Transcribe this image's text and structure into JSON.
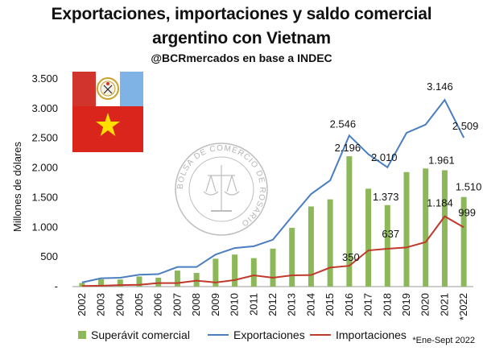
{
  "header": {
    "title_line1": "Exportaciones, importaciones y saldo comercial",
    "title_line2": "argentino con Vietnam",
    "subtitle": "@BCRmercados en base a INDEC"
  },
  "note": "*Ene-Sept 2022",
  "colors": {
    "bars": "#8db85a",
    "exports": "#4a7ec1",
    "imports": "#c0392b",
    "vietnam_red": "#da251d",
    "vietnam_star": "#ffde00",
    "santa_fe_red": "#d0342c",
    "santa_fe_blue": "#7fb2e5"
  },
  "icons": [
    "vietnam-flag-icon",
    "santa-fe-flag-icon",
    "bolsa-de-comercio-de-rosario-seal-icon"
  ],
  "watermark_text": "BOLSA DE COMERCIO DE ROSARIO",
  "chart_data": {
    "type": "bar",
    "ylabel": "Millones de dólares",
    "ylim": [
      0,
      3500
    ],
    "yticks": [
      "-",
      "500",
      "1.000",
      "1.500",
      "2.000",
      "2.500",
      "3.000",
      "3.500"
    ],
    "categories": [
      "2002",
      "2003",
      "2004",
      "2005",
      "2006",
      "2007",
      "2008",
      "2009",
      "2010",
      "2011",
      "2012",
      "2013",
      "2014",
      "2015",
      "2016",
      "2017",
      "2018",
      "2019",
      "2020",
      "2021",
      "*2022"
    ],
    "series": [
      {
        "name": "Superávit comercial",
        "kind": "bar",
        "values": [
          60,
          125,
          120,
          170,
          150,
          270,
          230,
          470,
          540,
          480,
          640,
          990,
          1350,
          1470,
          2196,
          1650,
          1373,
          1930,
          1990,
          1961,
          1510
        ]
      },
      {
        "name": "Exportaciones",
        "kind": "line",
        "values": [
          70,
          140,
          150,
          200,
          210,
          330,
          330,
          540,
          650,
          680,
          790,
          1180,
          1560,
          1790,
          2546,
          2230,
          2010,
          2590,
          2730,
          3146,
          2509
        ]
      },
      {
        "name": "Importaciones",
        "kind": "line",
        "values": [
          10,
          15,
          25,
          30,
          60,
          60,
          100,
          70,
          110,
          190,
          150,
          190,
          195,
          320,
          350,
          610,
          637,
          660,
          750,
          1184,
          999
        ]
      }
    ],
    "data_labels": {
      "bar": {
        "14": "2.196",
        "16": "1.373",
        "19": "1.961",
        "20": "1.510"
      },
      "exports": {
        "14": "2.546",
        "16": "2.010",
        "19": "3.146",
        "20": "2.509"
      },
      "imports": {
        "14": "350",
        "16": "637",
        "19": "1.184",
        "20": "999"
      }
    },
    "grid": false,
    "legend": "bottom"
  }
}
